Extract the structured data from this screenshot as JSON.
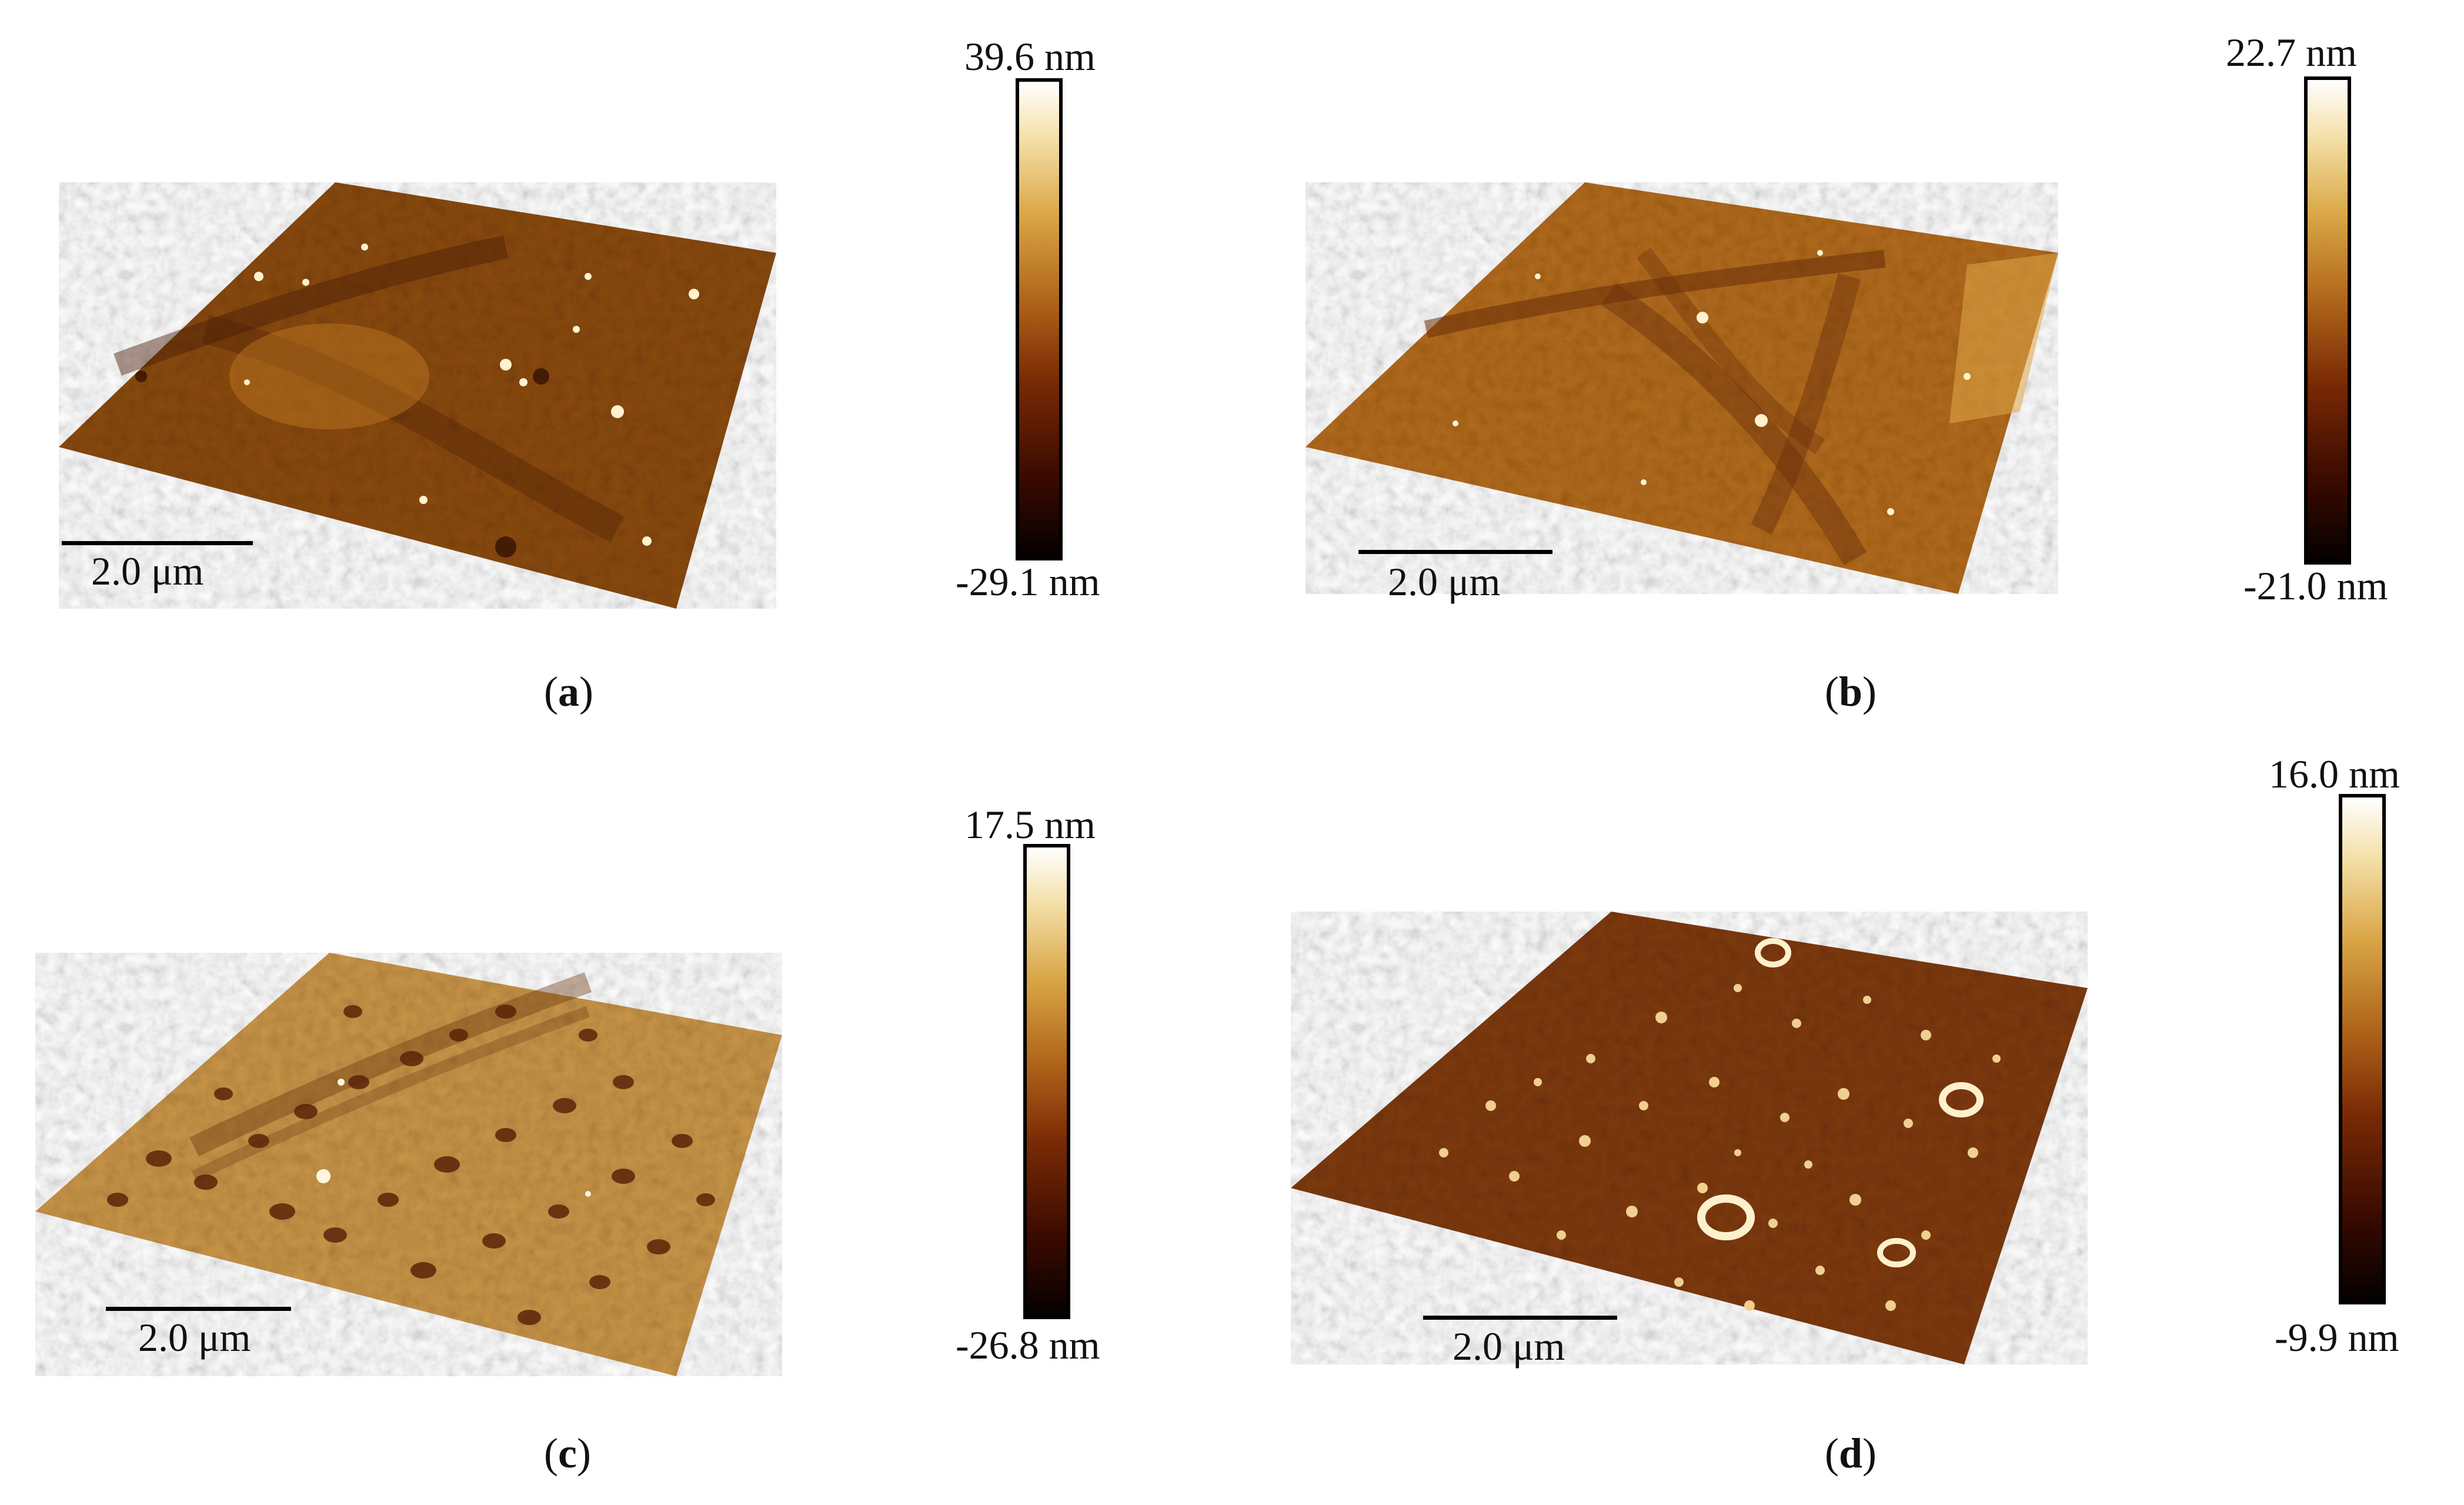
{
  "panels": [
    {
      "id": "a",
      "caption_letter": "a",
      "scale_label": "2.0 μm",
      "cbar_max": "39.6 nm",
      "cbar_min": "-29.1 nm",
      "colors": {
        "base": "#8a4a10",
        "dark": "#4a1c06",
        "light": "#c27a22"
      }
    },
    {
      "id": "b",
      "caption_letter": "b",
      "scale_label": "2.0 μm",
      "cbar_max": "22.7 nm",
      "cbar_min": "-21.0 nm",
      "colors": {
        "base": "#b36b1c",
        "dark": "#6a2e0a",
        "light": "#e0a848"
      }
    },
    {
      "id": "c",
      "caption_letter": "c",
      "scale_label": "2.0 μm",
      "cbar_max": "17.5 nm",
      "cbar_min": "-26.8 nm",
      "colors": {
        "base": "#c99548",
        "dark": "#6a3410",
        "light": "#f3dc9c"
      }
    },
    {
      "id": "d",
      "caption_letter": "d",
      "scale_label": "2.0 μm",
      "cbar_max": "16.0 nm",
      "cbar_min": "-9.9 nm",
      "colors": {
        "base": "#7f3a0c",
        "dark": "#4a1a04",
        "light": "#d8a058"
      }
    }
  ],
  "colormap": [
    "#000000",
    "#3a0a00",
    "#7a2a05",
    "#b0661a",
    "#d9a545",
    "#f4dfa6",
    "#ffffff"
  ]
}
